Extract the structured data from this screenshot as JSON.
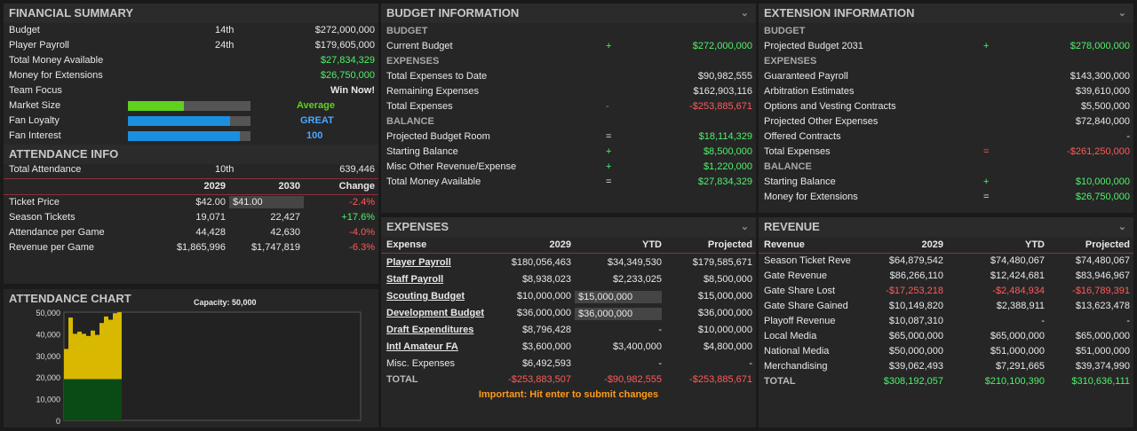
{
  "financial_summary": {
    "title": "FINANCIAL SUMMARY",
    "budget": {
      "label": "Budget",
      "rank": "14th",
      "value": "$272,000,000"
    },
    "payroll": {
      "label": "Player Payroll",
      "rank": "24th",
      "value": "$179,605,000"
    },
    "total_money": {
      "label": "Total Money Available",
      "value": "$27,834,329"
    },
    "money_ext": {
      "label": "Money for Extensions",
      "value": "$26,750,000"
    },
    "team_focus": {
      "label": "Team Focus",
      "value": "Win Now!"
    },
    "market_size": {
      "label": "Market Size",
      "value": "Average",
      "level": 0.46,
      "color": "#5fd11e"
    },
    "fan_loyalty": {
      "label": "Fan Loyalty",
      "value": "GREAT",
      "level": 0.83,
      "color": "#1a8fe0"
    },
    "fan_interest": {
      "label": "Fan Interest",
      "value": "100",
      "level": 0.91,
      "color": "#1a8fe0"
    }
  },
  "attendance_info": {
    "title": "ATTENDANCE INFO",
    "total": {
      "label": "Total Attendance",
      "rank": "10th",
      "value": "639,446"
    },
    "headers": [
      "2029",
      "2030",
      "Change"
    ],
    "rows": [
      {
        "label": "Ticket Price",
        "v2029": "$42.00",
        "v2030": "$41.00",
        "change": "-2.4%",
        "neg": true,
        "editable": true
      },
      {
        "label": "Season Tickets",
        "v2029": "19,071",
        "v2030": "22,427",
        "change": "+17.6%",
        "neg": false,
        "editable": false
      },
      {
        "label": "Attendance per Game",
        "v2029": "44,428",
        "v2030": "42,630",
        "change": "-4.0%",
        "neg": true,
        "editable": false
      },
      {
        "label": "Revenue per Game",
        "v2029": "$1,865,996",
        "v2030": "$1,747,819",
        "change": "-6.3%",
        "neg": true,
        "editable": false
      }
    ]
  },
  "attendance_chart": {
    "title": "ATTENDANCE CHART",
    "capacity": "Capacity: 50,000",
    "yticks": [
      "50,000",
      "40,000",
      "30,000",
      "20,000",
      "10,000",
      "0"
    ],
    "ymax": 50000,
    "season_ticket_level": 19071,
    "games": [
      33000,
      47500,
      40000,
      41000,
      40000,
      39000,
      41500,
      39500,
      45000,
      48000,
      46500,
      49500,
      50000
    ],
    "colors": {
      "attendance": "#d8b800",
      "season": "#0a4a14"
    }
  },
  "budget_info": {
    "title": "BUDGET INFORMATION",
    "sec_budget": "BUDGET",
    "current_budget": {
      "label": "Current Budget",
      "op": "+",
      "value": "$272,000,000"
    },
    "sec_expenses": "EXPENSES",
    "expenses_to_date": {
      "label": "Total Expenses to Date",
      "value": "$90,982,555"
    },
    "remaining": {
      "label": "Remaining Expenses",
      "value": "$162,903,116"
    },
    "total_expenses": {
      "label": "Total Expenses",
      "op": "-",
      "value": "-$253,885,671"
    },
    "sec_balance": "BALANCE",
    "projected_room": {
      "label": "Projected Budget Room",
      "op": "=",
      "value": "$18,114,329"
    },
    "starting_balance": {
      "label": "Starting Balance",
      "op": "+",
      "value": "$8,500,000"
    },
    "misc": {
      "label": "Misc Other Revenue/Expense",
      "op": "+",
      "value": "$1,220,000"
    },
    "total_money": {
      "label": "Total Money Available",
      "op": "=",
      "value": "$27,834,329"
    }
  },
  "extension_info": {
    "title": "EXTENSION INFORMATION",
    "sec_budget": "BUDGET",
    "projected_budget": {
      "label": "Projected Budget 2031",
      "op": "+",
      "value": "$278,000,000"
    },
    "sec_expenses": "EXPENSES",
    "guaranteed": {
      "label": "Guaranteed Payroll",
      "value": "$143,300,000"
    },
    "arbitration": {
      "label": "Arbitration Estimates",
      "value": "$39,610,000"
    },
    "options": {
      "label": "Options and Vesting Contracts",
      "value": "$5,500,000"
    },
    "projected_other": {
      "label": "Projected Other Expenses",
      "value": "$72,840,000"
    },
    "offered": {
      "label": "Offered Contracts",
      "value": "-"
    },
    "total_expenses": {
      "label": "Total Expenses",
      "op": "=",
      "value": "-$261,250,000"
    },
    "sec_balance": "BALANCE",
    "starting_balance": {
      "label": "Starting Balance",
      "op": "+",
      "value": "$10,000,000"
    },
    "money_ext": {
      "label": "Money for Extensions",
      "op": "=",
      "value": "$26,750,000"
    }
  },
  "expenses": {
    "title": "EXPENSES",
    "headers": [
      "Expense",
      "2029",
      "YTD",
      "Projected"
    ],
    "rows": [
      {
        "label": "Player Payroll",
        "v2029": "$180,056,463",
        "ytd": "$34,349,530",
        "proj": "$179,585,671",
        "link": true,
        "edit": false
      },
      {
        "label": "Staff Payroll",
        "v2029": "$8,938,023",
        "ytd": "$2,233,025",
        "proj": "$8,500,000",
        "link": true,
        "edit": false
      },
      {
        "label": "Scouting Budget",
        "v2029": "$10,000,000",
        "ytd": "$15,000,000",
        "proj": "$15,000,000",
        "link": true,
        "edit": true
      },
      {
        "label": "Development Budget",
        "v2029": "$36,000,000",
        "ytd": "$36,000,000",
        "proj": "$36,000,000",
        "link": true,
        "edit": true
      },
      {
        "label": "Draft Expenditures",
        "v2029": "$8,796,428",
        "ytd": "-",
        "proj": "$10,000,000",
        "link": true,
        "edit": false
      },
      {
        "label": "Intl Amateur FA",
        "v2029": "$3,600,000",
        "ytd": "$3,400,000",
        "proj": "$4,800,000",
        "link": true,
        "edit": false
      },
      {
        "label": "Misc. Expenses",
        "v2029": "$6,492,593",
        "ytd": "-",
        "proj": "-",
        "link": false,
        "edit": false
      }
    ],
    "total": {
      "label": "TOTAL",
      "v2029": "-$253,883,507",
      "ytd": "-$90,982,555",
      "proj": "-$253,885,671"
    },
    "note": "Important: Hit enter to submit changes"
  },
  "revenue": {
    "title": "REVENUE",
    "headers": [
      "Revenue",
      "2029",
      "YTD",
      "Projected"
    ],
    "rows": [
      {
        "label": "Season Ticket Reven",
        "v2029": "$64,879,542",
        "ytd": "$74,480,067",
        "proj": "$74,480,067",
        "neg": false
      },
      {
        "label": "Gate Revenue",
        "v2029": "$86,266,110",
        "ytd": "$12,424,681",
        "proj": "$83,946,967",
        "neg": false
      },
      {
        "label": "Gate Share Lost",
        "v2029": "-$17,253,218",
        "ytd": "-$2,484,934",
        "proj": "-$16,789,391",
        "neg": true
      },
      {
        "label": "Gate Share Gained",
        "v2029": "$10,149,820",
        "ytd": "$2,388,911",
        "proj": "$13,623,478",
        "neg": false
      },
      {
        "label": "Playoff Revenue",
        "v2029": "$10,087,310",
        "ytd": "-",
        "proj": "-",
        "neg": false
      },
      {
        "label": "Local Media",
        "v2029": "$65,000,000",
        "ytd": "$65,000,000",
        "proj": "$65,000,000",
        "neg": false
      },
      {
        "label": "National Media",
        "v2029": "$50,000,000",
        "ytd": "$51,000,000",
        "proj": "$51,000,000",
        "neg": false
      },
      {
        "label": "Merchandising",
        "v2029": "$39,062,493",
        "ytd": "$7,291,665",
        "proj": "$39,374,990",
        "neg": false
      }
    ],
    "total": {
      "label": "TOTAL",
      "v2029": "$308,192,057",
      "ytd": "$210,100,390",
      "proj": "$310,636,111"
    }
  }
}
